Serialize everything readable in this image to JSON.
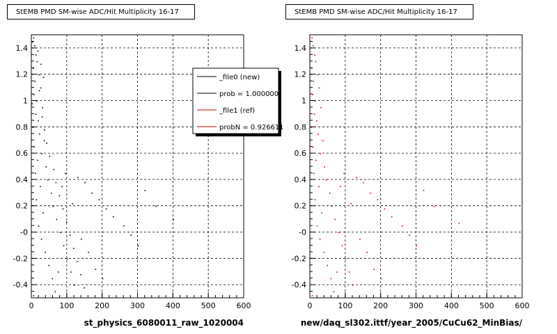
{
  "footer_text": "",
  "chart_data": [
    {
      "type": "scatter",
      "title": "StEMB PMD SM-wise ADC/Hit Multiplicity 16-17",
      "xlabel": "st_physics_6080011_raw_1020004",
      "ylabel": "",
      "xlim": [
        0,
        600
      ],
      "ylim": [
        -0.5,
        1.5
      ],
      "x_ticks": [
        "0",
        "100",
        "200",
        "300",
        "400",
        "500",
        "600"
      ],
      "y_ticks": [
        "-0.4",
        "-0.2",
        "-0",
        "0.2",
        "0.4",
        "0.6",
        "0.8",
        "1",
        "1.2",
        "1.4"
      ],
      "grid": true,
      "point_color": "#000000",
      "series_color": "#000000",
      "legend_position": "top-right",
      "legend": [
        {
          "label": "_file0 (new)",
          "color": "#000000"
        },
        {
          "label": "prob = 1.000000",
          "color": "#000000"
        },
        {
          "label": "_file1 (ref)",
          "color": "#cc0000"
        },
        {
          "label": "probN = 0.926611",
          "color": "#cc0000"
        }
      ],
      "points": [
        [
          5,
          1.48
        ],
        [
          8,
          1.42
        ],
        [
          12,
          1.35
        ],
        [
          15,
          1.3
        ],
        [
          4,
          1.25
        ],
        [
          20,
          1.2
        ],
        [
          9,
          1.15
        ],
        [
          25,
          1.1
        ],
        [
          6,
          1.05
        ],
        [
          14,
          1.0
        ],
        [
          30,
          0.95
        ],
        [
          11,
          0.9
        ],
        [
          18,
          0.85
        ],
        [
          3,
          0.8
        ],
        [
          22,
          0.75
        ],
        [
          35,
          0.7
        ],
        [
          7,
          0.65
        ],
        [
          28,
          0.6
        ],
        [
          16,
          0.55
        ],
        [
          40,
          0.5
        ],
        [
          10,
          0.45
        ],
        [
          45,
          0.4
        ],
        [
          24,
          0.35
        ],
        [
          55,
          0.3
        ],
        [
          13,
          0.25
        ],
        [
          60,
          0.2
        ],
        [
          32,
          0.15
        ],
        [
          70,
          0.1
        ],
        [
          19,
          0.05
        ],
        [
          80,
          0.0
        ],
        [
          27,
          -0.05
        ],
        [
          90,
          -0.1
        ],
        [
          38,
          -0.15
        ],
        [
          100,
          -0.2
        ],
        [
          48,
          -0.25
        ],
        [
          110,
          -0.3
        ],
        [
          58,
          -0.35
        ],
        [
          120,
          -0.4
        ],
        [
          66,
          -0.45
        ],
        [
          5,
          -0.48
        ],
        [
          130,
          0.42
        ],
        [
          150,
          0.38
        ],
        [
          170,
          0.3
        ],
        [
          190,
          0.25
        ],
        [
          210,
          0.18
        ],
        [
          230,
          0.12
        ],
        [
          260,
          0.05
        ],
        [
          280,
          -0.02
        ],
        [
          300,
          -0.1
        ],
        [
          320,
          0.32
        ],
        [
          350,
          0.2
        ],
        [
          400,
          0.1
        ],
        [
          95,
          0.45
        ],
        [
          115,
          0.22
        ],
        [
          140,
          -0.05
        ],
        [
          160,
          -0.15
        ],
        [
          180,
          -0.28
        ],
        [
          200,
          -0.35
        ],
        [
          85,
          0.35
        ],
        [
          75,
          -0.3
        ],
        [
          2,
          1.45
        ],
        [
          17,
          1.38
        ],
        [
          26,
          1.28
        ],
        [
          33,
          1.18
        ],
        [
          21,
          1.08
        ],
        [
          1,
          0.98
        ],
        [
          29,
          0.88
        ],
        [
          36,
          0.78
        ],
        [
          42,
          0.68
        ],
        [
          50,
          0.58
        ],
        [
          62,
          0.48
        ],
        [
          68,
          0.38
        ],
        [
          78,
          0.28
        ],
        [
          88,
          0.18
        ],
        [
          98,
          0.08
        ],
        [
          108,
          -0.02
        ],
        [
          118,
          -0.12
        ],
        [
          128,
          -0.22
        ],
        [
          138,
          -0.32
        ],
        [
          148,
          -0.42
        ]
      ]
    },
    {
      "type": "scatter",
      "title": "StEMB PMD SM-wise ADC/Hit Multiplicity 16-17",
      "xlabel": "new/daq_sl302.ittf/year_2005/CuCu62_MinBias/",
      "ylabel": "",
      "xlim": [
        0,
        600
      ],
      "ylim": [
        -0.5,
        1.5
      ],
      "x_ticks": [
        "0",
        "100",
        "200",
        "300",
        "400",
        "500",
        "600"
      ],
      "y_ticks": [
        "-0.4",
        "-0.2",
        "-0",
        "0.2",
        "0.4",
        "0.6",
        "0.8",
        "1",
        "1.2",
        "1.4"
      ],
      "grid": true,
      "point_color": "#cc0000",
      "legend": [],
      "points": [
        [
          5,
          1.48
        ],
        [
          8,
          1.42
        ],
        [
          12,
          1.35
        ],
        [
          15,
          1.3
        ],
        [
          4,
          1.25
        ],
        [
          20,
          1.2
        ],
        [
          9,
          1.15
        ],
        [
          25,
          1.1
        ],
        [
          6,
          1.05
        ],
        [
          14,
          1.0
        ],
        [
          30,
          0.95
        ],
        [
          11,
          0.9
        ],
        [
          18,
          0.85
        ],
        [
          3,
          0.8
        ],
        [
          22,
          0.75
        ],
        [
          35,
          0.7
        ],
        [
          7,
          0.65
        ],
        [
          28,
          0.6
        ],
        [
          16,
          0.55
        ],
        [
          40,
          0.5
        ],
        [
          10,
          0.45
        ],
        [
          45,
          0.4
        ],
        [
          24,
          0.35
        ],
        [
          55,
          0.3
        ],
        [
          13,
          0.25
        ],
        [
          60,
          0.2
        ],
        [
          32,
          0.15
        ],
        [
          70,
          0.1
        ],
        [
          19,
          0.05
        ],
        [
          80,
          0.0
        ],
        [
          27,
          -0.05
        ],
        [
          90,
          -0.1
        ],
        [
          38,
          -0.15
        ],
        [
          100,
          -0.2
        ],
        [
          48,
          -0.25
        ],
        [
          110,
          -0.3
        ],
        [
          58,
          -0.35
        ],
        [
          120,
          -0.4
        ],
        [
          66,
          -0.45
        ],
        [
          5,
          -0.48
        ],
        [
          130,
          0.42
        ],
        [
          150,
          0.38
        ],
        [
          170,
          0.3
        ],
        [
          190,
          0.25
        ],
        [
          210,
          0.18
        ],
        [
          230,
          0.12
        ],
        [
          260,
          0.05
        ],
        [
          280,
          -0.02
        ],
        [
          300,
          -0.1
        ],
        [
          320,
          0.32
        ],
        [
          350,
          0.2
        ],
        [
          420,
          0.07
        ],
        [
          95,
          0.45
        ],
        [
          115,
          0.22
        ],
        [
          140,
          -0.05
        ],
        [
          160,
          -0.15
        ],
        [
          180,
          -0.28
        ],
        [
          200,
          -0.35
        ],
        [
          85,
          0.35
        ],
        [
          75,
          -0.3
        ]
      ]
    }
  ]
}
